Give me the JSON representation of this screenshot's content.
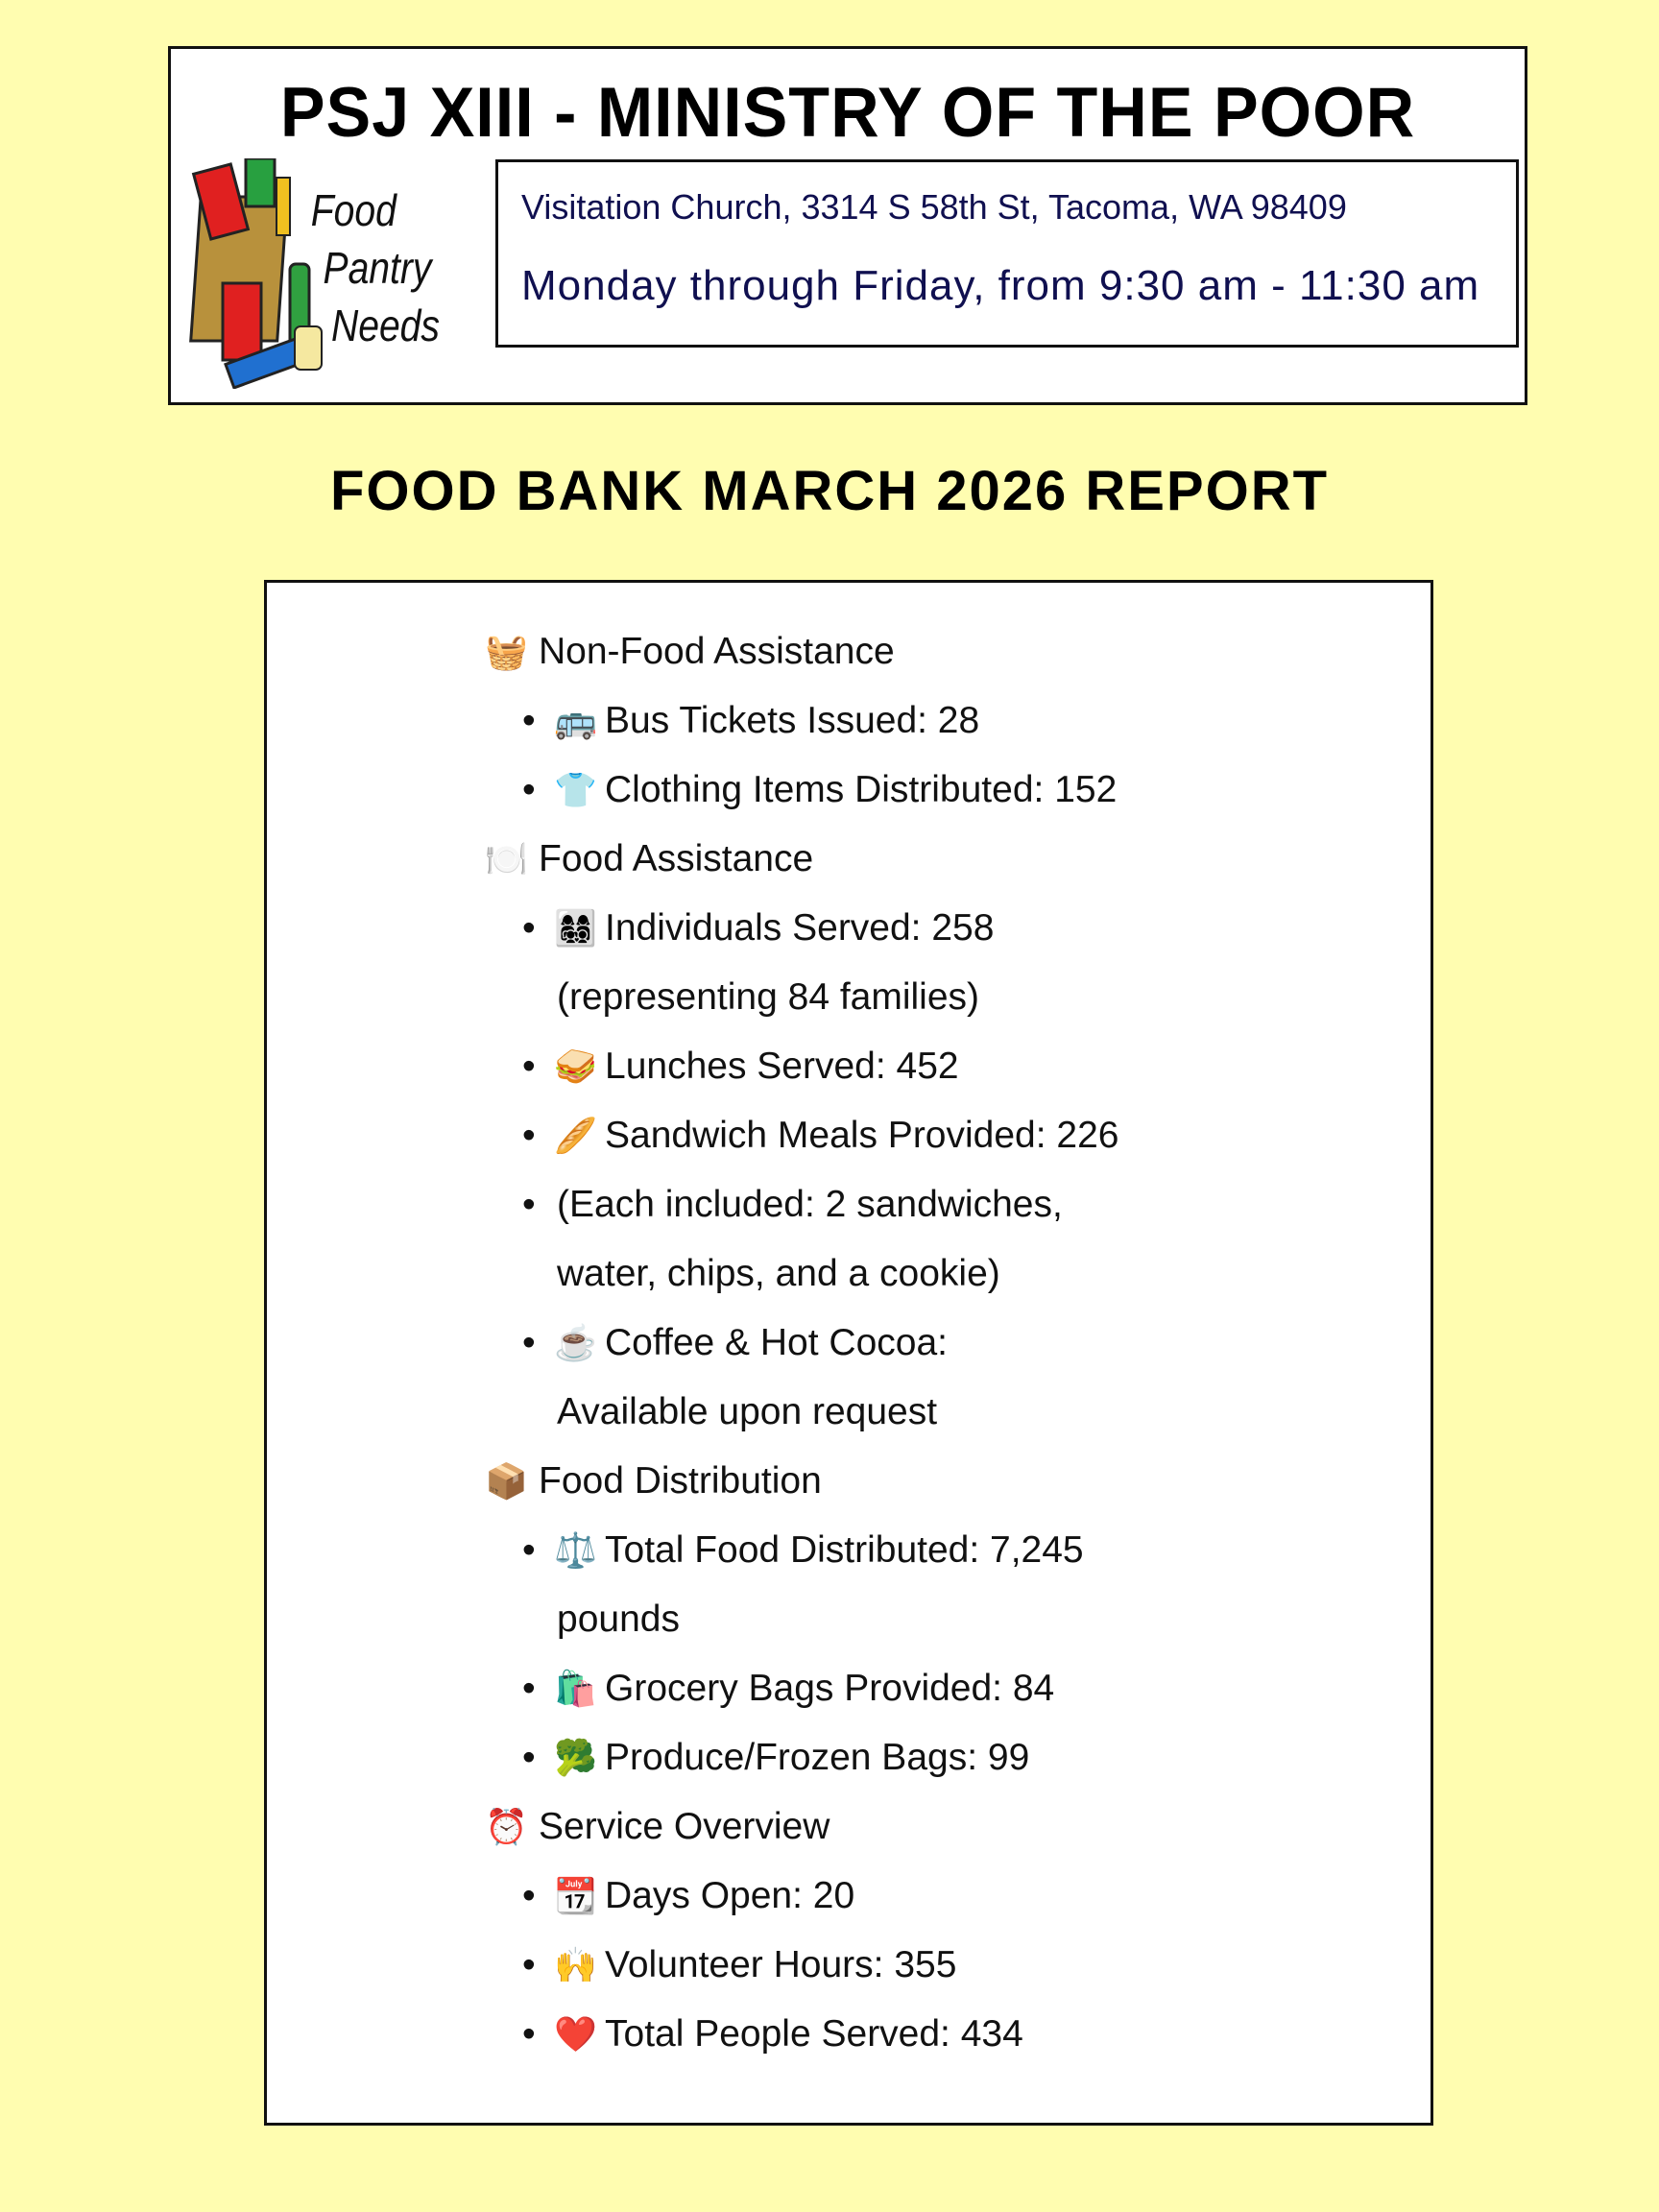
{
  "header": {
    "title": "PSJ XIII - MINISTRY OF THE POOR",
    "logo_text": "Food Pantry Needs",
    "address": "Visitation Church, 3314 S 58th St, Tacoma, WA 98409",
    "hours": "Monday through Friday, from 9:30 am - 11:30 am"
  },
  "report_title": "FOOD BANK MARCH 2026 REPORT",
  "lines": [
    {
      "kind": "sec",
      "icon": "🧺",
      "icon_name": "basket-icon",
      "text": "Non-Food Assistance"
    },
    {
      "kind": "item",
      "icon": "🚌",
      "icon_name": "bus-icon",
      "text": "Bus Tickets Issued: 28"
    },
    {
      "kind": "item",
      "icon": "👕",
      "icon_name": "tshirt-icon",
      "text": "Clothing Items Distributed: 152"
    },
    {
      "kind": "sec",
      "icon": "🍽️",
      "icon_name": "plate-cutlery-icon",
      "text": "Food Assistance"
    },
    {
      "kind": "item",
      "icon": "👩‍👩‍👧‍👦",
      "icon_name": "family-icon",
      "text": "Individuals Served: 258"
    },
    {
      "kind": "cont",
      "text": "(representing 84 families)"
    },
    {
      "kind": "item",
      "icon": "🥪",
      "icon_name": "sandwich-icon",
      "text": "Lunches Served: 452"
    },
    {
      "kind": "item",
      "icon": "🥖",
      "icon_name": "baguette-icon",
      "text": "Sandwich Meals Provided: 226"
    },
    {
      "kind": "item",
      "icon": "",
      "text": "(Each included: 2 sandwiches,"
    },
    {
      "kind": "cont",
      "text": "water, chips, and a cookie)"
    },
    {
      "kind": "item",
      "icon": "☕",
      "icon_name": "hot-beverage-icon",
      "text": "Coffee & Hot Cocoa:"
    },
    {
      "kind": "cont",
      "text": "Available upon request"
    },
    {
      "kind": "sec",
      "icon": "📦",
      "icon_name": "package-icon",
      "text": "Food Distribution"
    },
    {
      "kind": "item",
      "icon": "⚖️",
      "icon_name": "scale-icon",
      "text": "Total Food Distributed: 7,245"
    },
    {
      "kind": "cont",
      "text": "pounds"
    },
    {
      "kind": "item",
      "icon": "🛍️",
      "icon_name": "shopping-bags-icon",
      "text": "Grocery Bags Provided: 84"
    },
    {
      "kind": "item",
      "icon": "🥦",
      "icon_name": "broccoli-icon",
      "text": "Produce/Frozen Bags: 99"
    },
    {
      "kind": "sec",
      "icon": "⏰",
      "icon_name": "alarm-clock-icon",
      "text": "Service Overview"
    },
    {
      "kind": "item",
      "icon": "📆",
      "icon_name": "calendar-icon",
      "text": "Days Open: 20"
    },
    {
      "kind": "item",
      "icon": "🙌",
      "icon_name": "raised-hands-icon",
      "text": "Volunteer Hours: 355"
    },
    {
      "kind": "item",
      "icon": "❤️",
      "icon_name": "heart-icon",
      "text": "Total People Served: 434"
    }
  ],
  "colors": {
    "background": "#fffdb0",
    "info_text": "#101050"
  }
}
